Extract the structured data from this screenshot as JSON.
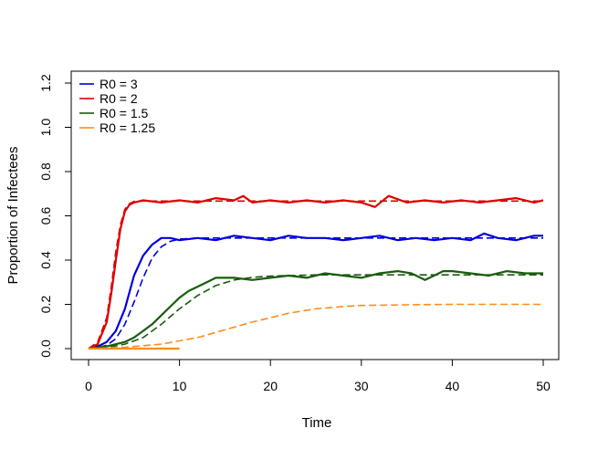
{
  "chart_data": {
    "type": "line",
    "title": "",
    "xlabel": "Time",
    "ylabel": "Proportion of Infectees",
    "xlim": [
      0,
      50
    ],
    "ylim": [
      0,
      1.2
    ],
    "x_ticks": [
      0,
      10,
      20,
      30,
      40,
      50
    ],
    "y_ticks": [
      0.0,
      0.2,
      0.4,
      0.6,
      0.8,
      1.0,
      1.2
    ],
    "x_tick_labels": [
      "0",
      "10",
      "20",
      "30",
      "40",
      "50"
    ],
    "y_tick_labels": [
      "0.0",
      "0.2",
      "0.4",
      "0.6",
      "0.8",
      "1.0",
      "1.2"
    ],
    "grid": false,
    "legend_position": "top-left",
    "series": [
      {
        "name": "R0 = 3",
        "color": "#0000dd",
        "stochastic": {
          "x": [
            0,
            1,
            2,
            3,
            4,
            5,
            6,
            7,
            8,
            9,
            10,
            12,
            14,
            16,
            18,
            20,
            22,
            24,
            26,
            28,
            30,
            32,
            34,
            36,
            38,
            40,
            42,
            43.5,
            45,
            47,
            49,
            50
          ],
          "y": [
            0.0,
            0.01,
            0.03,
            0.08,
            0.18,
            0.33,
            0.42,
            0.47,
            0.5,
            0.5,
            0.49,
            0.5,
            0.49,
            0.51,
            0.5,
            0.49,
            0.51,
            0.5,
            0.5,
            0.49,
            0.5,
            0.51,
            0.49,
            0.5,
            0.49,
            0.5,
            0.49,
            0.52,
            0.5,
            0.49,
            0.51,
            0.51
          ]
        },
        "deterministic": {
          "x": [
            0,
            1,
            2,
            3,
            4,
            5,
            6,
            7,
            8,
            9,
            10,
            12,
            15,
            20,
            30,
            40,
            50
          ],
          "y": [
            0.0,
            0.005,
            0.015,
            0.045,
            0.11,
            0.21,
            0.32,
            0.41,
            0.46,
            0.485,
            0.495,
            0.5,
            0.5,
            0.5,
            0.5,
            0.5,
            0.5
          ]
        }
      },
      {
        "name": "R0 = 2",
        "color": "#dd0000",
        "stochastic": {
          "x": [
            0,
            1,
            2,
            2.5,
            3,
            3.5,
            4,
            4.5,
            5,
            6,
            8,
            10,
            12,
            14,
            16,
            17,
            18,
            20,
            22,
            24,
            26,
            28,
            30,
            31.5,
            33,
            35,
            37,
            39,
            41,
            43,
            45,
            47,
            49,
            50
          ],
          "y": [
            0.0,
            0.02,
            0.12,
            0.25,
            0.4,
            0.54,
            0.62,
            0.65,
            0.66,
            0.67,
            0.66,
            0.67,
            0.66,
            0.68,
            0.67,
            0.69,
            0.66,
            0.67,
            0.66,
            0.67,
            0.66,
            0.67,
            0.66,
            0.64,
            0.69,
            0.66,
            0.67,
            0.66,
            0.67,
            0.66,
            0.67,
            0.68,
            0.66,
            0.67
          ]
        },
        "deterministic": {
          "x": [
            0,
            1,
            2,
            2.5,
            3,
            3.5,
            4,
            4.5,
            5,
            6,
            8,
            10,
            20,
            30,
            40,
            50
          ],
          "y": [
            0.0,
            0.03,
            0.14,
            0.28,
            0.44,
            0.56,
            0.63,
            0.655,
            0.665,
            0.667,
            0.667,
            0.667,
            0.667,
            0.667,
            0.667,
            0.667
          ]
        }
      },
      {
        "name": "R0 = 1.5",
        "color": "#1a5c0f",
        "stochastic": {
          "x": [
            0,
            2,
            4,
            5,
            6,
            7,
            8,
            9,
            10,
            11,
            12,
            13,
            14,
            16,
            18,
            20,
            22,
            24,
            26,
            28,
            30,
            32,
            34,
            35.5,
            37,
            38,
            39,
            40,
            42,
            44,
            46,
            48,
            50
          ],
          "y": [
            0.0,
            0.01,
            0.03,
            0.05,
            0.08,
            0.11,
            0.15,
            0.19,
            0.23,
            0.26,
            0.28,
            0.3,
            0.32,
            0.32,
            0.31,
            0.32,
            0.33,
            0.32,
            0.34,
            0.33,
            0.32,
            0.34,
            0.35,
            0.34,
            0.31,
            0.33,
            0.35,
            0.35,
            0.34,
            0.33,
            0.35,
            0.34,
            0.34
          ]
        },
        "deterministic": {
          "x": [
            0,
            2,
            4,
            6,
            8,
            10,
            12,
            14,
            16,
            18,
            20,
            25,
            30,
            40,
            50
          ],
          "y": [
            0.0,
            0.005,
            0.02,
            0.05,
            0.11,
            0.18,
            0.24,
            0.285,
            0.31,
            0.322,
            0.328,
            0.333,
            0.333,
            0.333,
            0.333
          ]
        }
      },
      {
        "name": "R0 = 1.25",
        "color": "#ff8c1a",
        "stochastic": {
          "x": [
            0,
            10
          ],
          "y": [
            0.0,
            0.0
          ]
        },
        "deterministic": {
          "x": [
            0,
            4,
            8,
            10,
            12,
            15,
            18,
            20,
            22,
            25,
            28,
            30,
            35,
            40,
            45,
            50
          ],
          "y": [
            0.0,
            0.006,
            0.02,
            0.035,
            0.05,
            0.085,
            0.12,
            0.14,
            0.16,
            0.18,
            0.19,
            0.195,
            0.198,
            0.2,
            0.2,
            0.2
          ]
        }
      }
    ]
  }
}
